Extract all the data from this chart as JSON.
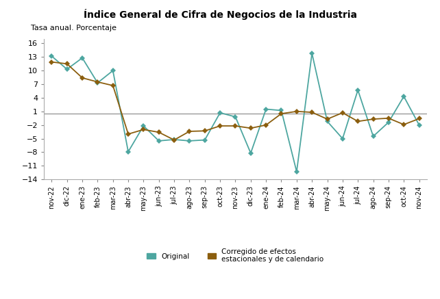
{
  "title": "Índice General de Cifra de Negocios de la Industria",
  "subtitle": "Tasa anual. Porcentaje",
  "x_labels": [
    "nov-22",
    "dic-22",
    "ene-23",
    "feb-23",
    "mar-23",
    "abr-23",
    "may-23",
    "jun-23",
    "jul-23",
    "ago-23",
    "sep-23",
    "oct-23",
    "nov-23",
    "dic-23",
    "ene-24",
    "feb-24",
    "mar-24",
    "abr-24",
    "may-24",
    "jun-24",
    "jul-24",
    "ago-24",
    "sep-24",
    "oct-24",
    "nov-24"
  ],
  "original": [
    13.2,
    10.3,
    12.8,
    7.3,
    10.0,
    -7.9,
    -2.2,
    -5.5,
    -5.2,
    -5.5,
    -5.3,
    0.7,
    -0.2,
    -8.2,
    1.5,
    1.2,
    -12.3,
    13.8,
    -1.2,
    -5.0,
    5.7,
    -4.5,
    -1.4,
    4.3,
    -2.0
  ],
  "corrected": [
    11.9,
    11.5,
    8.4,
    7.5,
    6.7,
    -4.0,
    -3.0,
    -3.6,
    -5.3,
    -3.4,
    -3.3,
    -2.2,
    -2.2,
    -2.7,
    -2.0,
    0.5,
    1.0,
    0.8,
    -0.7,
    0.7,
    -1.2,
    -0.7,
    -0.5,
    -1.9,
    -0.6
  ],
  "hline_y": 0.5,
  "ylim": [
    -14,
    17
  ],
  "yticks": [
    -14,
    -11,
    -8,
    -5,
    -2,
    1,
    4,
    7,
    10,
    13,
    16
  ],
  "color_original": "#4DA6A0",
  "color_corrected": "#8B5E0E",
  "color_hline": "#999999",
  "legend_original": "Original",
  "legend_corrected": "Corregido de efectos\nestacionales y de calendario",
  "marker_size": 4,
  "linewidth": 1.3
}
